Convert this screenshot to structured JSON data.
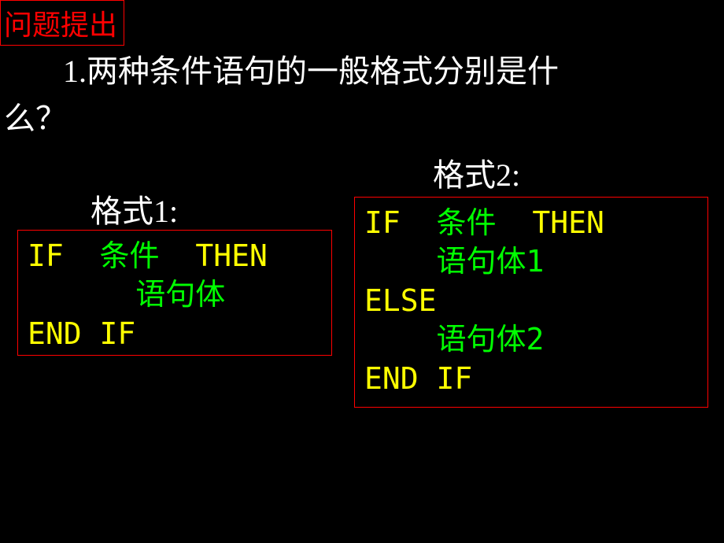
{
  "header": {
    "title": "问题提出"
  },
  "question": {
    "line1": "1.两种条件语句的一般格式分别是什",
    "line2": "么？"
  },
  "format1": {
    "label": "格式1:",
    "line1_kw1": "IF",
    "line1_cond": "条件",
    "line1_kw2": "THEN",
    "line2_body": "语句体",
    "line3_kw": "END IF"
  },
  "format2": {
    "label": "格式2:",
    "line1_kw1": "IF",
    "line1_cond": "条件",
    "line1_kw2": "THEN",
    "line2_body": "语句体1",
    "line3_kw": "ELSE",
    "line4_body": "语句体2",
    "line5_kw": "END IF"
  },
  "colors": {
    "background": "#000000",
    "header_border": "#ff0000",
    "header_text": "#ff0000",
    "body_text": "#ffffff",
    "keyword": "#ffff00",
    "code_body": "#00ff00",
    "box_border": "#ff0000"
  },
  "fonts": {
    "header_size": 36,
    "body_size": 40,
    "code_size": 38
  }
}
